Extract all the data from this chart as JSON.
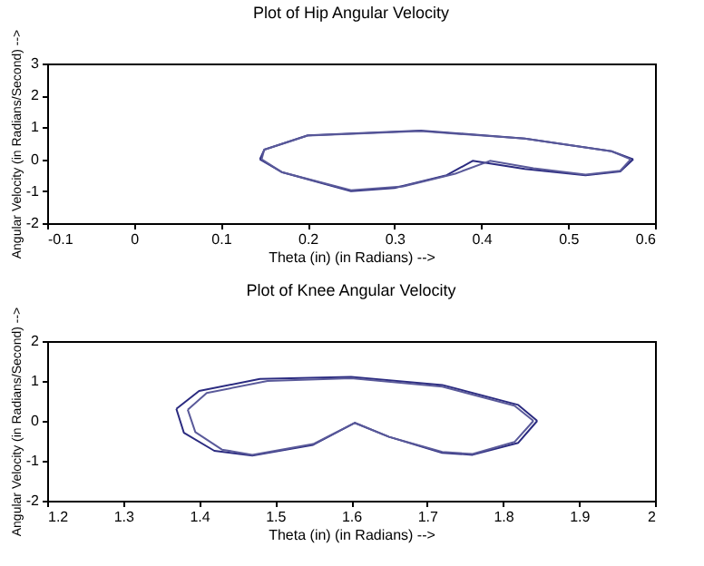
{
  "chart_data": [
    {
      "type": "line",
      "title": "Plot of Hip Angular Velocity",
      "xlabel": "Theta (in) (in Radians) -->",
      "ylabel": "Angular Velocity (in Radians/Second) -->",
      "xlim": [
        -0.1,
        0.6
      ],
      "xticks": [
        -0.1,
        0,
        0.1,
        0.2,
        0.3,
        0.4,
        0.5,
        0.6
      ],
      "ylim": [
        -2,
        3
      ],
      "yticks": [
        -2,
        -1,
        0,
        1,
        2,
        3
      ],
      "series": [
        {
          "color": "#2b2b80",
          "x": [
            0.145,
            0.15,
            0.2,
            0.33,
            0.45,
            0.55,
            0.575
          ],
          "values": [
            0,
            0.3,
            0.75,
            0.9,
            0.65,
            0.25,
            0
          ]
        },
        {
          "color": "#2b2b80",
          "x": [
            0.145,
            0.17,
            0.25,
            0.3,
            0.36,
            0.39,
            0.45,
            0.52,
            0.56,
            0.575
          ],
          "values": [
            0,
            -0.4,
            -1.0,
            -0.9,
            -0.5,
            -0.05,
            -0.3,
            -0.5,
            -0.38,
            0
          ]
        },
        {
          "color": "#5a5a9a",
          "x": [
            0.147,
            0.15,
            0.2,
            0.33,
            0.45,
            0.55,
            0.572
          ],
          "values": [
            0,
            0.3,
            0.74,
            0.88,
            0.65,
            0.25,
            0
          ]
        },
        {
          "color": "#5a5a9a",
          "x": [
            0.147,
            0.17,
            0.25,
            0.31,
            0.37,
            0.41,
            0.46,
            0.52,
            0.56,
            0.572
          ],
          "values": [
            0,
            -0.4,
            -0.97,
            -0.85,
            -0.45,
            -0.05,
            -0.28,
            -0.48,
            -0.36,
            0
          ]
        }
      ]
    },
    {
      "type": "line",
      "title": "Plot of Knee Angular Velocity",
      "xlabel": "Theta (in) (in Radians) -->",
      "ylabel": "Angular Velocity (in Radians/Second) -->",
      "xlim": [
        1.2,
        2
      ],
      "xticks": [
        1.2,
        1.3,
        1.4,
        1.5,
        1.6,
        1.7,
        1.8,
        1.9,
        2
      ],
      "ylim": [
        -2,
        2
      ],
      "yticks": [
        -2,
        -1,
        0,
        1,
        2
      ],
      "series": [
        {
          "color": "#2b2b80",
          "x": [
            1.37,
            1.4,
            1.48,
            1.6,
            1.72,
            1.82,
            1.845
          ],
          "values": [
            0.3,
            0.75,
            1.05,
            1.1,
            0.9,
            0.4,
            0
          ]
        },
        {
          "color": "#2b2b80",
          "x": [
            1.37,
            1.38,
            1.42,
            1.47,
            1.55,
            1.605,
            1.65,
            1.72,
            1.76,
            1.82,
            1.845
          ],
          "values": [
            0.3,
            -0.3,
            -0.75,
            -0.87,
            -0.6,
            -0.05,
            -0.4,
            -0.8,
            -0.85,
            -0.55,
            0
          ]
        },
        {
          "color": "#5a5a9a",
          "x": [
            1.385,
            1.41,
            1.49,
            1.6,
            1.72,
            1.815,
            1.84
          ],
          "values": [
            0.28,
            0.7,
            1.0,
            1.07,
            0.86,
            0.38,
            0
          ]
        },
        {
          "color": "#5a5a9a",
          "x": [
            1.385,
            1.395,
            1.43,
            1.47,
            1.55,
            1.605,
            1.65,
            1.72,
            1.76,
            1.815,
            1.84
          ],
          "values": [
            0.28,
            -0.28,
            -0.72,
            -0.85,
            -0.58,
            -0.05,
            -0.4,
            -0.78,
            -0.83,
            -0.53,
            0
          ]
        }
      ]
    }
  ]
}
